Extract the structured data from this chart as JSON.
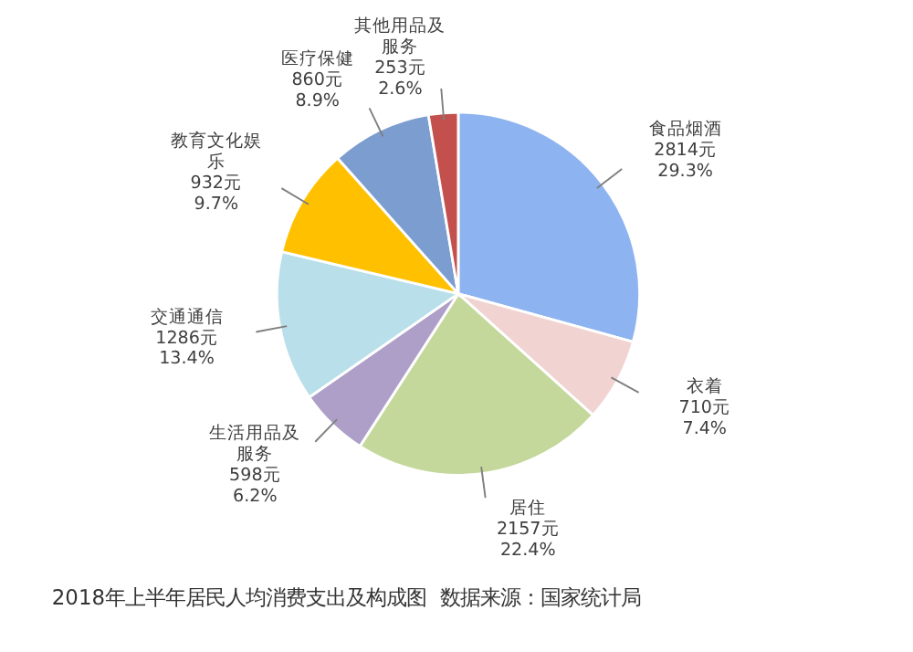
{
  "chart_data": {
    "type": "pie",
    "title": "2018年上半年居民人均消费支出及构成图",
    "annotations": [
      "数据来源：国家统计局"
    ],
    "categories": [
      "食品烟酒",
      "衣着",
      "居住",
      "生活用品及服务",
      "交通通信",
      "教育文化娱乐",
      "医疗保健",
      "其他用品及服务"
    ],
    "values": [
      2814,
      710,
      2157,
      598,
      1286,
      932,
      860,
      253
    ],
    "value_labels": [
      "2814元\n29.3%",
      "710元\n7.4%",
      "2157元\n22.4%",
      "598元\n6.2%",
      "1286元\n13.4%",
      "932元\n9.7%",
      "860元\n8.9%",
      "253元\n2.6%"
    ],
    "colors": [
      "#8db3f0",
      "#f1d3d2",
      "#c5d89c",
      "#ae9fc8",
      "#b9dfea",
      "#ffc000",
      "#7b9dcf",
      "#c4504d"
    ]
  }
}
